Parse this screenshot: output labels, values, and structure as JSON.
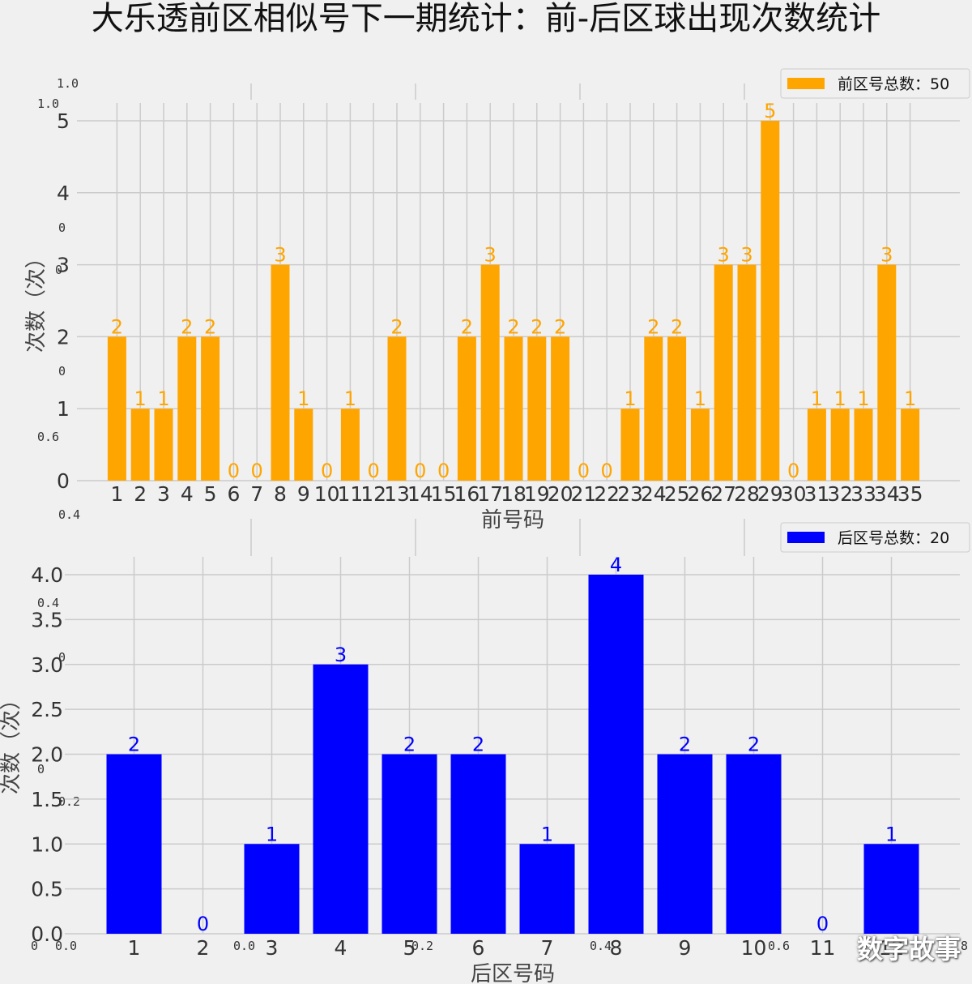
{
  "title": "大乐透前区相似号下一期统计：前-后区球出现次数统计",
  "watermark": "数字故事",
  "ghost_labels": [
    "1.0",
    "1.0",
    "0",
    "0",
    "0",
    "0.6",
    "0.4",
    "0.4",
    "0",
    "0",
    "0.2",
    "0",
    "0.0",
    "0.0",
    "0.2",
    "0.4",
    "0.6",
    "0.8",
    "1.0"
  ],
  "colors": {
    "front": "#ffa500",
    "back": "#0000ff",
    "background": "#f0f0f0",
    "grid": "#cbcbcb"
  },
  "chart_data": [
    {
      "type": "bar",
      "xlabel": "前号码",
      "ylabel": "次数（次）",
      "legend": "前区号总数：50",
      "legend_position": "top-right",
      "grid": true,
      "ylim": [
        0,
        5
      ],
      "yticks": [
        "0",
        "1",
        "2",
        "3",
        "4",
        "5"
      ],
      "categories": [
        "1",
        "2",
        "3",
        "4",
        "5",
        "6",
        "7",
        "8",
        "9",
        "10",
        "11",
        "12",
        "13",
        "14",
        "15",
        "16",
        "17",
        "18",
        "19",
        "20",
        "21",
        "22",
        "23",
        "24",
        "25",
        "26",
        "27",
        "28",
        "29",
        "30",
        "31",
        "32",
        "33",
        "34",
        "35"
      ],
      "values": [
        2,
        1,
        1,
        2,
        2,
        0,
        0,
        3,
        1,
        0,
        1,
        0,
        2,
        0,
        0,
        2,
        3,
        2,
        2,
        2,
        0,
        0,
        1,
        2,
        2,
        1,
        3,
        3,
        5,
        0,
        1,
        1,
        1,
        3,
        1
      ]
    },
    {
      "type": "bar",
      "xlabel": "后区号码",
      "ylabel": "次数（次）",
      "legend": "后区号总数：20",
      "legend_position": "top-right",
      "grid": true,
      "ylim": [
        0,
        4
      ],
      "yticks": [
        "0.0",
        "0.5",
        "1.0",
        "1.5",
        "2.0",
        "2.5",
        "3.0",
        "3.5",
        "4.0"
      ],
      "categories": [
        "1",
        "2",
        "3",
        "4",
        "5",
        "6",
        "7",
        "8",
        "9",
        "10",
        "11",
        "12"
      ],
      "values": [
        2,
        0,
        1,
        3,
        2,
        2,
        1,
        4,
        2,
        2,
        0,
        1
      ]
    }
  ]
}
